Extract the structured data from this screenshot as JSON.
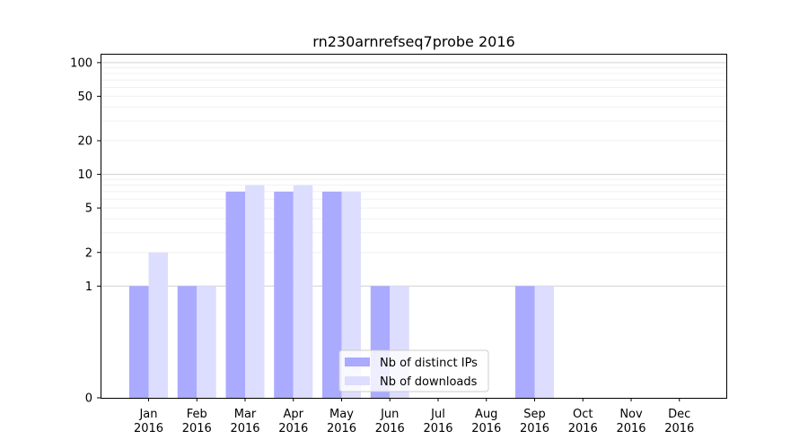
{
  "chart_data": {
    "type": "bar",
    "title": "rn230arnrefseq7probe 2016",
    "xlabel": "",
    "ylabel": "",
    "y_scale": "symlog",
    "y_ticks": [
      0,
      1,
      2,
      5,
      10,
      20,
      50,
      100
    ],
    "ylim": [
      0,
      120
    ],
    "categories": [
      "Jan\n2016",
      "Feb\n2016",
      "Mar\n2016",
      "Apr\n2016",
      "May\n2016",
      "Jun\n2016",
      "Jul\n2016",
      "Aug\n2016",
      "Sep\n2016",
      "Oct\n2016",
      "Nov\n2016",
      "Dec\n2016"
    ],
    "series": [
      {
        "name": "Nb of distinct IPs",
        "color": "#aaaaff",
        "values": [
          1,
          1,
          7,
          7,
          7,
          1,
          0,
          0,
          1,
          0,
          0,
          0
        ]
      },
      {
        "name": "Nb of downloads",
        "color": "#ddddff",
        "values": [
          2,
          1,
          8,
          8,
          7,
          1,
          0,
          0,
          1,
          0,
          0,
          0
        ]
      }
    ],
    "grid": true,
    "legend_position": "bottom-center"
  }
}
